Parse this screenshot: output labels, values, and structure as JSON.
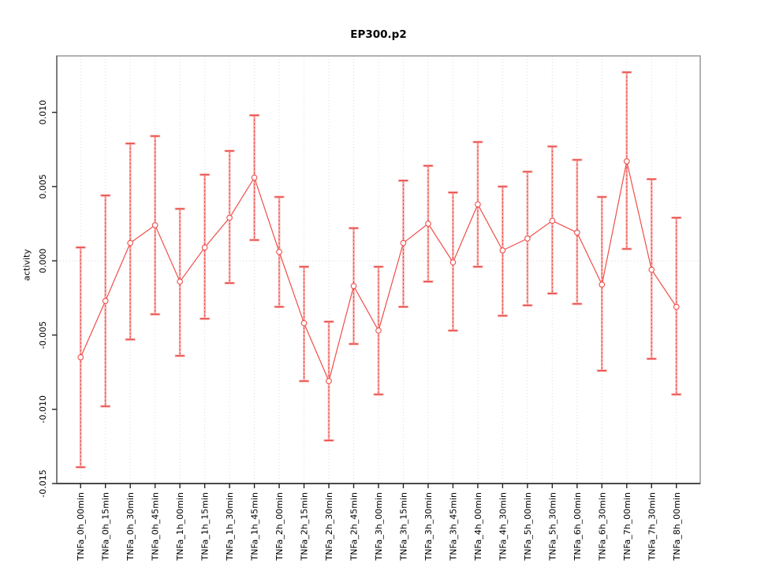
{
  "chart_data": {
    "type": "line",
    "title": "EP300.p2",
    "xlabel": "",
    "ylabel": "activity",
    "legend_position": "none",
    "grid": "vertical dotted gridlines at each category; dotted horizontal line at y=0",
    "categories": [
      "TNFa_0h_00min",
      "TNFa_0h_15min",
      "TNFa_0h_30min",
      "TNFa_0h_45min",
      "TNFa_1h_00min",
      "TNFa_1h_15min",
      "TNFa_1h_30min",
      "TNFa_1h_45min",
      "TNFa_2h_00min",
      "TNFa_2h_15min",
      "TNFa_2h_30min",
      "TNFa_2h_45min",
      "TNFa_3h_00min",
      "TNFa_3h_15min",
      "TNFa_3h_30min",
      "TNFa_3h_45min",
      "TNFa_4h_00min",
      "TNFa_4h_30min",
      "TNFa_5h_00min",
      "TNFa_5h_30min",
      "TNFa_6h_00min",
      "TNFa_6h_30min",
      "TNFa_7h_00min",
      "TNFa_7h_30min",
      "TNFa_8h_00min"
    ],
    "series": [
      {
        "name": "activity",
        "marker": "open-circle",
        "values": [
          -0.0065,
          -0.0027,
          0.0012,
          0.0024,
          -0.0014,
          0.0009,
          0.0029,
          0.0056,
          0.0006,
          -0.0042,
          -0.0081,
          -0.0017,
          -0.0047,
          0.0012,
          0.0025,
          -0.0001,
          0.0038,
          0.0007,
          0.0015,
          0.0027,
          0.0019,
          -0.0016,
          0.0067,
          -0.0006,
          -0.0031
        ],
        "lower": [
          -0.0139,
          -0.0098,
          -0.0053,
          -0.0036,
          -0.0064,
          -0.0039,
          -0.0015,
          0.0014,
          -0.0031,
          -0.0081,
          -0.0121,
          -0.0056,
          -0.009,
          -0.0031,
          -0.0014,
          -0.0047,
          -0.0004,
          -0.0037,
          -0.003,
          -0.0022,
          -0.0029,
          -0.0074,
          0.0008,
          -0.0066,
          -0.009
        ],
        "upper": [
          0.0009,
          0.0044,
          0.0079,
          0.0084,
          0.0035,
          0.0058,
          0.0074,
          0.0098,
          0.0043,
          -0.0004,
          -0.0041,
          0.0022,
          -0.0004,
          0.0054,
          0.0064,
          0.0046,
          0.008,
          0.005,
          0.006,
          0.0077,
          0.0068,
          0.0043,
          0.0127,
          0.0055,
          0.0029
        ]
      }
    ],
    "ylim": [
      -0.015,
      0.0138
    ],
    "yticks": [
      -0.015,
      -0.01,
      -0.005,
      0.0,
      0.005,
      0.01
    ],
    "ytick_labels": [
      "-0.015",
      "-0.010",
      "-0.005",
      "0.000",
      "0.005",
      "0.010"
    ],
    "colors": {
      "series_line": "#ef4e49",
      "marker_stroke": "#ef4e49",
      "errorbar_light": "#f8aeab",
      "errorbar_dark": "#e8433f",
      "gridline": "#dcdcdc",
      "zero_line": "#d8d8d8",
      "box_border": "#9e9e9e",
      "axis_line": "#222222",
      "text": "#000000"
    }
  }
}
